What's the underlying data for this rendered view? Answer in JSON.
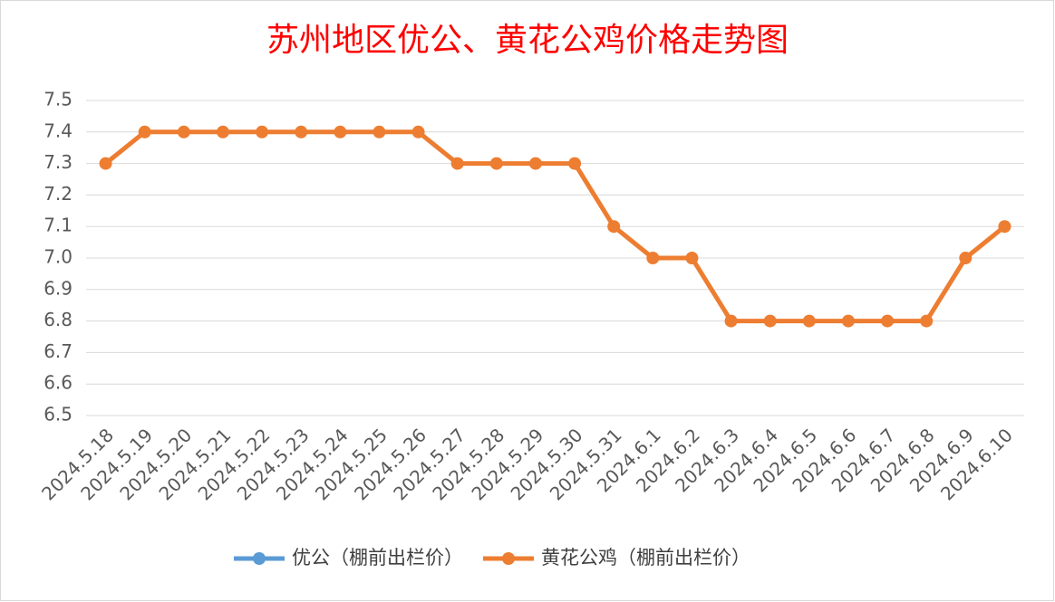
{
  "chart_data": {
    "type": "line",
    "title": "苏州地区优公、黄花公鸡价格走势图",
    "categories": [
      "2024.5.18",
      "2024.5.19",
      "2024.5.20",
      "2024.5.21",
      "2024.5.22",
      "2024.5.23",
      "2024.5.24",
      "2024.5.25",
      "2024.5.26",
      "2024.5.27",
      "2024.5.28",
      "2024.5.29",
      "2024.5.30",
      "2024.5.31",
      "2024.6.1",
      "2024.6.2",
      "2024.6.3",
      "2024.6.4",
      "2024.6.5",
      "2024.6.6",
      "2024.6.7",
      "2024.6.8",
      "2024.6.9",
      "2024.6.10"
    ],
    "series": [
      {
        "name": "优公（棚前出栏价）",
        "color": "#5b9bd5",
        "values": [
          null,
          null,
          null,
          null,
          null,
          null,
          null,
          null,
          null,
          null,
          null,
          null,
          null,
          null,
          null,
          null,
          null,
          null,
          null,
          null,
          null,
          null,
          null,
          null
        ]
      },
      {
        "name": "黄花公鸡（棚前出栏价）",
        "color": "#ed7d31",
        "values": [
          7.3,
          7.4,
          7.4,
          7.4,
          7.4,
          7.4,
          7.4,
          7.4,
          7.4,
          7.3,
          7.3,
          7.3,
          7.3,
          7.1,
          7,
          7,
          6.8,
          6.8,
          6.8,
          6.8,
          6.8,
          6.8,
          7,
          7.1
        ]
      }
    ],
    "ylim": [
      6.5,
      7.5
    ],
    "yticks": [
      6.5,
      6.6,
      6.7,
      6.8,
      6.9,
      {
        "value": 7,
        "label": "7.0"
      },
      7.1,
      7.2,
      7.3,
      7.4,
      7.5
    ],
    "grid": true,
    "legend": "bottom"
  }
}
